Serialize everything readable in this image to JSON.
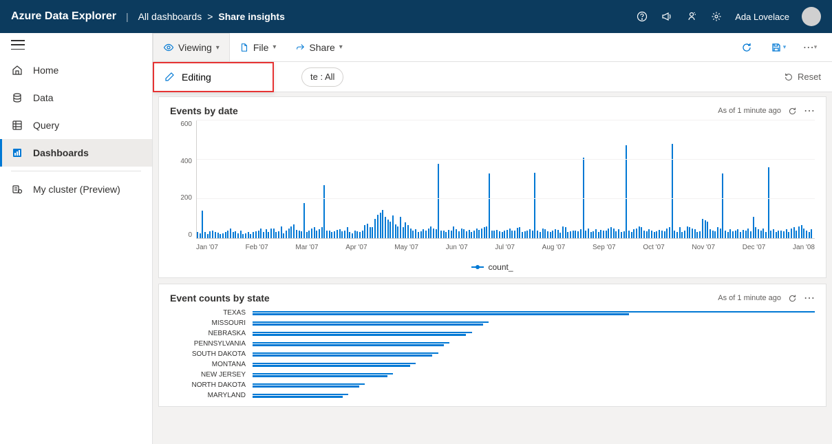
{
  "header": {
    "brand": "Azure Data Explorer",
    "breadcrumb_root": "All dashboards",
    "breadcrumb_sep": ">",
    "breadcrumb_current": "Share insights",
    "user_name": "Ada Lovelace"
  },
  "sidebar": {
    "items": [
      {
        "label": "Home",
        "icon": "home"
      },
      {
        "label": "Data",
        "icon": "data"
      },
      {
        "label": "Query",
        "icon": "query"
      },
      {
        "label": "Dashboards",
        "icon": "dashboard",
        "active": true
      }
    ],
    "cluster_label": "My cluster (Preview)"
  },
  "toolbar": {
    "viewing_label": "Viewing",
    "file_label": "File",
    "share_label": "Share",
    "editing_label": "Editing"
  },
  "filter_row": {
    "state_filter_label": "te : All",
    "reset_label": "Reset"
  },
  "panels": {
    "events_by_date": {
      "title": "Events by date",
      "as_of": "As of 1 minute ago",
      "chart": {
        "type": "bar",
        "ylim": [
          0,
          600
        ],
        "yticks": [
          0,
          200,
          400,
          600
        ],
        "x_labels": [
          "Jan '07",
          "Feb '07",
          "Mar '07",
          "Apr '07",
          "May '07",
          "Jun '07",
          "Jul '07",
          "Aug '07",
          "Sep '07",
          "Oct '07",
          "Nov '07",
          "Dec '07",
          "Jan '08"
        ],
        "series_color": "#0078d4",
        "grid_color": "#f3f2f1",
        "legend_label": "count_",
        "values": [
          30,
          25,
          140,
          30,
          20,
          35,
          40,
          30,
          28,
          22,
          25,
          30,
          40,
          50,
          30,
          35,
          25,
          40,
          22,
          26,
          30,
          20,
          30,
          35,
          40,
          50,
          30,
          45,
          32,
          48,
          50,
          30,
          35,
          60,
          25,
          40,
          50,
          60,
          70,
          42,
          40,
          35,
          180,
          30,
          40,
          50,
          55,
          40,
          45,
          55,
          270,
          38,
          40,
          30,
          35,
          42,
          45,
          35,
          40,
          55,
          30,
          25,
          40,
          35,
          30,
          40,
          65,
          75,
          55,
          55,
          100,
          120,
          130,
          145,
          110,
          95,
          85,
          115,
          70,
          60,
          110,
          55,
          80,
          65,
          50,
          40,
          45,
          30,
          35,
          45,
          40,
          48,
          60,
          48,
          45,
          380,
          40,
          38,
          30,
          42,
          40,
          60,
          45,
          35,
          50,
          45,
          35,
          42,
          30,
          40,
          50,
          42,
          48,
          55,
          60,
          330,
          40,
          38,
          42,
          35,
          30,
          38,
          42,
          50,
          40,
          38,
          52,
          55,
          30,
          35,
          38,
          45,
          40,
          335,
          40,
          30,
          50,
          45,
          35,
          30,
          40,
          45,
          42,
          28,
          60,
          55,
          30,
          35,
          38,
          40,
          35,
          45,
          410,
          40,
          50,
          30,
          35,
          45,
          30,
          42,
          40,
          38,
          48,
          55,
          50,
          35,
          45,
          30,
          35,
          475,
          40,
          30,
          45,
          50,
          60,
          55,
          40,
          35,
          45,
          38,
          30,
          35,
          42,
          40,
          35,
          48,
          55,
          480,
          40,
          30,
          55,
          30,
          40,
          60,
          55,
          50,
          45,
          30,
          35,
          100,
          90,
          85,
          45,
          40,
          35,
          55,
          48,
          330,
          40,
          30,
          45,
          35,
          40,
          45,
          30,
          42,
          40,
          50,
          35,
          110,
          55,
          45,
          40,
          48,
          30,
          360,
          40,
          45,
          30,
          38,
          40,
          35,
          45,
          30,
          48,
          55,
          40,
          60,
          65,
          50,
          38,
          30,
          45
        ]
      }
    },
    "event_counts_by_state": {
      "title": "Event counts by state",
      "as_of": "As of 1 minute ago",
      "chart": {
        "type": "hbar",
        "series_color": "#0078d4",
        "max_value": 100,
        "rows": [
          {
            "label": "TEXAS",
            "values": [
              100,
              67
            ]
          },
          {
            "label": "MISSOURI",
            "values": [
              42,
              41
            ]
          },
          {
            "label": "NEBRASKA",
            "values": [
              39,
              38
            ]
          },
          {
            "label": "PENNSYLVANIA",
            "values": [
              35,
              34
            ]
          },
          {
            "label": "SOUTH DAKOTA",
            "values": [
              33,
              32
            ]
          },
          {
            "label": "MONTANA",
            "values": [
              29,
              28
            ]
          },
          {
            "label": "NEW JERSEY",
            "values": [
              25,
              24
            ]
          },
          {
            "label": "NORTH DAKOTA",
            "values": [
              20,
              19
            ]
          },
          {
            "label": "MARYLAND",
            "values": [
              17,
              16
            ]
          }
        ]
      }
    }
  },
  "colors": {
    "primary": "#0078d4",
    "header_bg": "#0c3b5e",
    "text": "#323130",
    "muted": "#605e5c",
    "border": "#e1e1e1",
    "highlight_border": "#e63333"
  }
}
